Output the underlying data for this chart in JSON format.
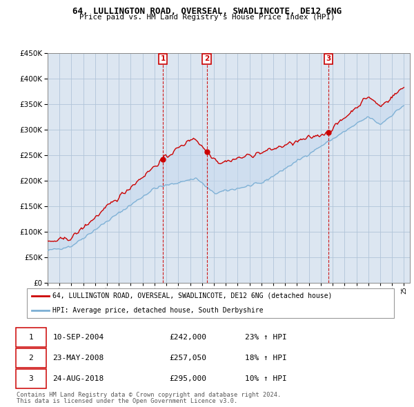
{
  "title": "64, LULLINGTON ROAD, OVERSEAL, SWADLINCOTE, DE12 6NG",
  "subtitle": "Price paid vs. HM Land Registry's House Price Index (HPI)",
  "red_label": "64, LULLINGTON ROAD, OVERSEAL, SWADLINCOTE, DE12 6NG (detached house)",
  "blue_label": "HPI: Average price, detached house, South Derbyshire",
  "sales": [
    {
      "num": 1,
      "date": "10-SEP-2004",
      "price": 242000,
      "hpi_pct": "23% ↑ HPI",
      "year": 2004.7
    },
    {
      "num": 2,
      "date": "23-MAY-2008",
      "price": 257050,
      "hpi_pct": "18% ↑ HPI",
      "year": 2008.4
    },
    {
      "num": 3,
      "date": "24-AUG-2018",
      "price": 295000,
      "hpi_pct": "10% ↑ HPI",
      "year": 2018.65
    }
  ],
  "footnote1": "Contains HM Land Registry data © Crown copyright and database right 2024.",
  "footnote2": "This data is licensed under the Open Government Licence v3.0.",
  "ylim": [
    0,
    450000
  ],
  "yticks": [
    0,
    50000,
    100000,
    150000,
    200000,
    250000,
    300000,
    350000,
    400000,
    450000
  ],
  "red_color": "#cc0000",
  "blue_color": "#7bafd4",
  "fill_color": "#c5d9ee",
  "plot_bg": "#dce6f1",
  "fig_bg": "#ffffff",
  "grid_color": "#b0c4d8",
  "xstart": 1995,
  "xend": 2025
}
